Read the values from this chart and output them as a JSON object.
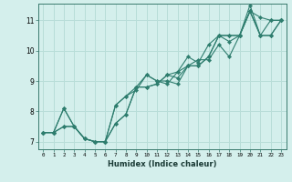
{
  "title": "",
  "xlabel": "Humidex (Indice chaleur)",
  "ylabel": "",
  "bg_color": "#d4efec",
  "grid_color": "#b8ddd8",
  "line_color": "#2e7d6e",
  "marker": "D",
  "markersize": 2.2,
  "linewidth": 0.8,
  "xlim": [
    -0.5,
    23.5
  ],
  "ylim": [
    6.75,
    11.55
  ],
  "xticks": [
    0,
    1,
    2,
    3,
    4,
    5,
    6,
    7,
    8,
    9,
    10,
    11,
    12,
    13,
    14,
    15,
    16,
    17,
    18,
    19,
    20,
    21,
    22,
    23
  ],
  "yticks": [
    7,
    8,
    9,
    10,
    11
  ],
  "series": [
    [
      7.3,
      7.3,
      8.1,
      7.5,
      7.1,
      7.0,
      7.0,
      8.2,
      8.5,
      8.8,
      9.2,
      9.0,
      8.9,
      9.3,
      9.8,
      9.6,
      10.2,
      10.5,
      10.3,
      10.5,
      11.5,
      10.5,
      11.0,
      11.0
    ],
    [
      7.3,
      7.3,
      7.5,
      7.5,
      7.1,
      7.0,
      7.0,
      7.6,
      7.9,
      8.8,
      8.8,
      8.9,
      9.2,
      9.1,
      9.5,
      9.5,
      9.8,
      10.5,
      10.5,
      10.5,
      11.3,
      11.1,
      11.0,
      11.0
    ],
    [
      7.3,
      7.3,
      7.5,
      7.5,
      7.1,
      7.0,
      7.0,
      8.2,
      8.5,
      8.7,
      9.2,
      9.0,
      9.0,
      8.9,
      9.5,
      9.7,
      9.7,
      10.2,
      9.8,
      10.5,
      11.3,
      10.5,
      10.5,
      11.0
    ],
    [
      7.3,
      7.3,
      8.1,
      7.5,
      7.1,
      7.0,
      7.0,
      7.6,
      7.9,
      8.8,
      8.8,
      8.9,
      9.2,
      9.3,
      9.5,
      9.5,
      9.8,
      10.5,
      10.5,
      10.5,
      11.3,
      10.5,
      10.5,
      11.0
    ]
  ]
}
